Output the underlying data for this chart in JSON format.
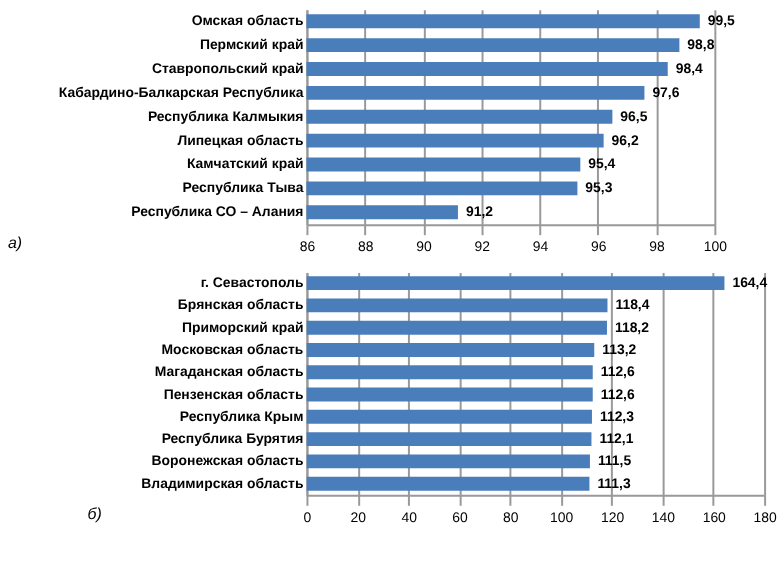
{
  "chart_data": [
    {
      "type": "bar",
      "orientation": "horizontal",
      "categories": [
        "Омская область",
        "Пермский край",
        "Ставропольский край",
        "Кабардино-Балкарская Республика",
        "Республика Калмыкия",
        "Липецкая область",
        "Камчатский край",
        "Республика Тыва",
        "Республика СО – Алания"
      ],
      "values": [
        99.5,
        98.8,
        98.4,
        97.6,
        96.5,
        96.2,
        95.4,
        95.3,
        91.2
      ],
      "value_labels": [
        "99,5",
        "98,8",
        "98,4",
        "97,6",
        "96,5",
        "96,2",
        "95,4",
        "95,3",
        "91,2"
      ],
      "color": "#4a7ebb",
      "xlim": [
        86,
        100
      ],
      "xticks": [
        86,
        88,
        90,
        92,
        94,
        96,
        98,
        100
      ],
      "grid": "x",
      "annotations": [
        "а)"
      ]
    },
    {
      "type": "bar",
      "orientation": "horizontal",
      "categories": [
        "г. Севастополь",
        "Брянская область",
        "Приморский край",
        "Московская область",
        "Магаданская область",
        "Пензенская область",
        "Республика  Крым",
        "Республика Бурятия",
        "Воронежская область",
        "Владимирская область"
      ],
      "values": [
        164.4,
        118.4,
        118.2,
        113.2,
        112.6,
        112.6,
        112.3,
        112.1,
        111.5,
        111.3
      ],
      "value_labels": [
        "164,4",
        "118,4",
        "118,2",
        "113,2",
        "112,6",
        "112,6",
        "112,3",
        "112,1",
        "111,5",
        "111,3"
      ],
      "color": "#4a7ebb",
      "xlim": [
        0,
        180
      ],
      "xticks": [
        0,
        20,
        40,
        60,
        80,
        100,
        120,
        140,
        160,
        180
      ],
      "grid": "x",
      "annotations": [
        "б)"
      ]
    }
  ]
}
